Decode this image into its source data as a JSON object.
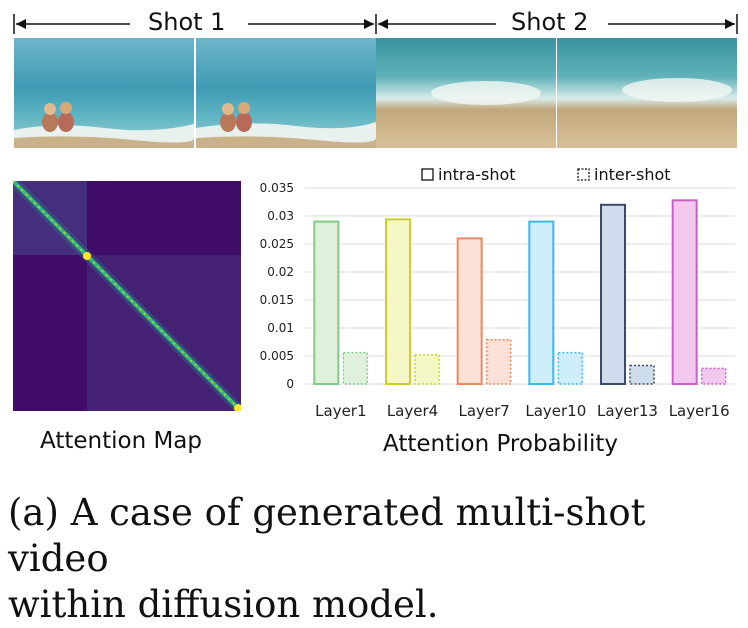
{
  "shots": [
    {
      "label": "Shot 1"
    },
    {
      "label": "Shot 2"
    }
  ],
  "heatmap": {
    "title": "Attention Map"
  },
  "chart_data": {
    "type": "bar",
    "title": "",
    "xlabel": "Attention Probability",
    "ylabel": "",
    "categories": [
      "Layer1",
      "Layer4",
      "Layer7",
      "Layer10",
      "Layer13",
      "Layer16"
    ],
    "ylim": [
      0,
      0.035
    ],
    "yticks": [
      "0",
      "0.005",
      "0.01",
      "0.015",
      "0.02",
      "0.025",
      "0.03",
      "0.035"
    ],
    "grid": true,
    "legend_position": "top",
    "series": [
      {
        "name": "intra-shot",
        "style": "solid",
        "values": [
          0.029,
          0.0294,
          0.026,
          0.029,
          0.032,
          0.0328
        ]
      },
      {
        "name": "inter-shot",
        "style": "dotted",
        "values": [
          0.0056,
          0.0052,
          0.0079,
          0.0056,
          0.0033,
          0.0028
        ]
      }
    ],
    "bar_colors": [
      {
        "fill": "#dff1dc",
        "stroke": "#82c98a"
      },
      {
        "fill": "#f5f7c6",
        "stroke": "#c9cf2a"
      },
      {
        "fill": "#fde1d6",
        "stroke": "#e98a5e"
      },
      {
        "fill": "#cdeefa",
        "stroke": "#3fb6e5"
      },
      {
        "fill": "#cfdceb",
        "stroke": "#3b4a66"
      },
      {
        "fill": "#f3c8ee",
        "stroke": "#c761c3"
      }
    ]
  },
  "caption": {
    "line1": "(a) A case of generated multi-shot video",
    "line2": "within diffusion model."
  }
}
